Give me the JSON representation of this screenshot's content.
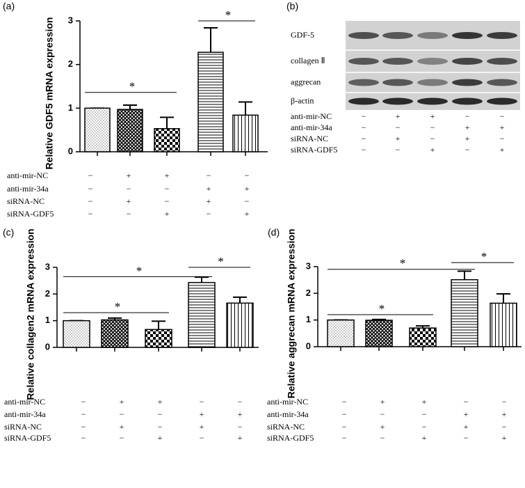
{
  "chart_data": [
    {
      "panel": "(a)",
      "type": "bar",
      "y_label": "Relative GDF5 mRNA expression",
      "values": [
        1,
        0.97,
        0.53,
        2.28,
        0.84
      ],
      "errors": [
        0,
        0.1,
        0.26,
        0.56,
        0.3
      ],
      "patterns": [
        "dots",
        "crosshatch",
        "checker",
        "hlines",
        "vlines"
      ],
      "ylim": [
        0,
        3
      ],
      "yticks": [
        0,
        1,
        2,
        3
      ],
      "significance": [
        "*",
        "*"
      ],
      "conditions": [
        {
          "label": "anti-mir-NC",
          "signs": [
            "−",
            "+",
            "+",
            "−",
            "−"
          ]
        },
        {
          "label": "anti-mir-34a",
          "signs": [
            "−",
            "−",
            "−",
            "+",
            "+"
          ]
        },
        {
          "label": "siRNA-NC",
          "signs": [
            "−",
            "+",
            "−",
            "+",
            "−"
          ]
        },
        {
          "label": "siRNA-GDF5",
          "signs": [
            "−",
            "−",
            "+",
            "−",
            "+"
          ]
        }
      ]
    },
    {
      "panel": "(c)",
      "type": "bar",
      "y_label": "Relative collagen2 mRNA expression",
      "values": [
        1,
        1.03,
        0.67,
        2.43,
        1.66
      ],
      "errors": [
        0,
        0.07,
        0.31,
        0.2,
        0.22
      ],
      "patterns": [
        "dots",
        "crosshatch",
        "checker",
        "hlines",
        "vlines"
      ],
      "ylim": [
        0,
        3
      ],
      "yticks": [
        0,
        1,
        2,
        3
      ],
      "significance": [
        "*",
        "*",
        "*"
      ],
      "conditions": [
        {
          "label": "anti-mir-NC",
          "signs": [
            "−",
            "+",
            "+",
            "−",
            "−"
          ]
        },
        {
          "label": "anti-mir-34a",
          "signs": [
            "−",
            "−",
            "−",
            "+",
            "+"
          ]
        },
        {
          "label": "siRNA-NC",
          "signs": [
            "−",
            "+",
            "−",
            "+",
            "−"
          ]
        },
        {
          "label": "siRNA-GDF5",
          "signs": [
            "−",
            "−",
            "+",
            "−",
            "+"
          ]
        }
      ]
    },
    {
      "panel": "(d)",
      "type": "bar",
      "y_label": "Relative aggrecan mRNA expression",
      "values": [
        1,
        0.99,
        0.7,
        2.51,
        1.63
      ],
      "errors": [
        0,
        0.03,
        0.08,
        0.32,
        0.35
      ],
      "patterns": [
        "dots",
        "crosshatch",
        "checker",
        "hlines",
        "vlines"
      ],
      "ylim": [
        0,
        3
      ],
      "yticks": [
        0,
        1,
        2,
        3
      ],
      "significance": [
        "*",
        "*",
        "*"
      ],
      "conditions": [
        {
          "label": "anti-mir-NC",
          "signs": [
            "−",
            "+",
            "+",
            "−",
            "−"
          ]
        },
        {
          "label": "anti-mir-34a",
          "signs": [
            "−",
            "−",
            "−",
            "+",
            "+"
          ]
        },
        {
          "label": "siRNA-NC",
          "signs": [
            "−",
            "+",
            "−",
            "+",
            "−"
          ]
        },
        {
          "label": "siRNA-GDF5",
          "signs": [
            "−",
            "−",
            "+",
            "−",
            "+"
          ]
        }
      ]
    }
  ],
  "blot": {
    "panel": "(b)",
    "labels": [
      "GDF-5",
      "collagen Ⅱ",
      "aggrecan",
      "β-actin"
    ],
    "conditions": [
      {
        "label": "anti-mir-NC",
        "signs": [
          "−",
          "+",
          "+",
          "−",
          "−"
        ]
      },
      {
        "label": "anti-mir-34a",
        "signs": [
          "−",
          "−",
          "−",
          "+",
          "+"
        ]
      },
      {
        "label": "siRNA-NC",
        "signs": [
          "−",
          "+",
          "−",
          "+",
          "−"
        ]
      },
      {
        "label": "siRNA-GDF5",
        "signs": [
          "−",
          "−",
          "+",
          "−",
          "+"
        ]
      }
    ]
  }
}
